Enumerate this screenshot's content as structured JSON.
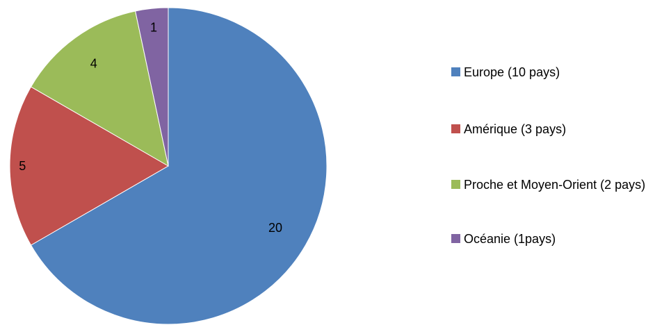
{
  "chart_data": {
    "type": "pie",
    "title": "",
    "categories": [
      "Europe (10 pays)",
      "Amérique (3 pays)",
      "Proche et Moyen-Orient (2 pays)",
      "Océanie (1pays)"
    ],
    "values": [
      20,
      5,
      4,
      1
    ],
    "data_labels": [
      "20",
      "5",
      "4",
      "1"
    ],
    "colors": [
      "#4F81BD",
      "#C0504D",
      "#9BBB59",
      "#8064A2"
    ],
    "start_angle": "12 o'clock",
    "direction": "clockwise",
    "legend_position": "right"
  }
}
